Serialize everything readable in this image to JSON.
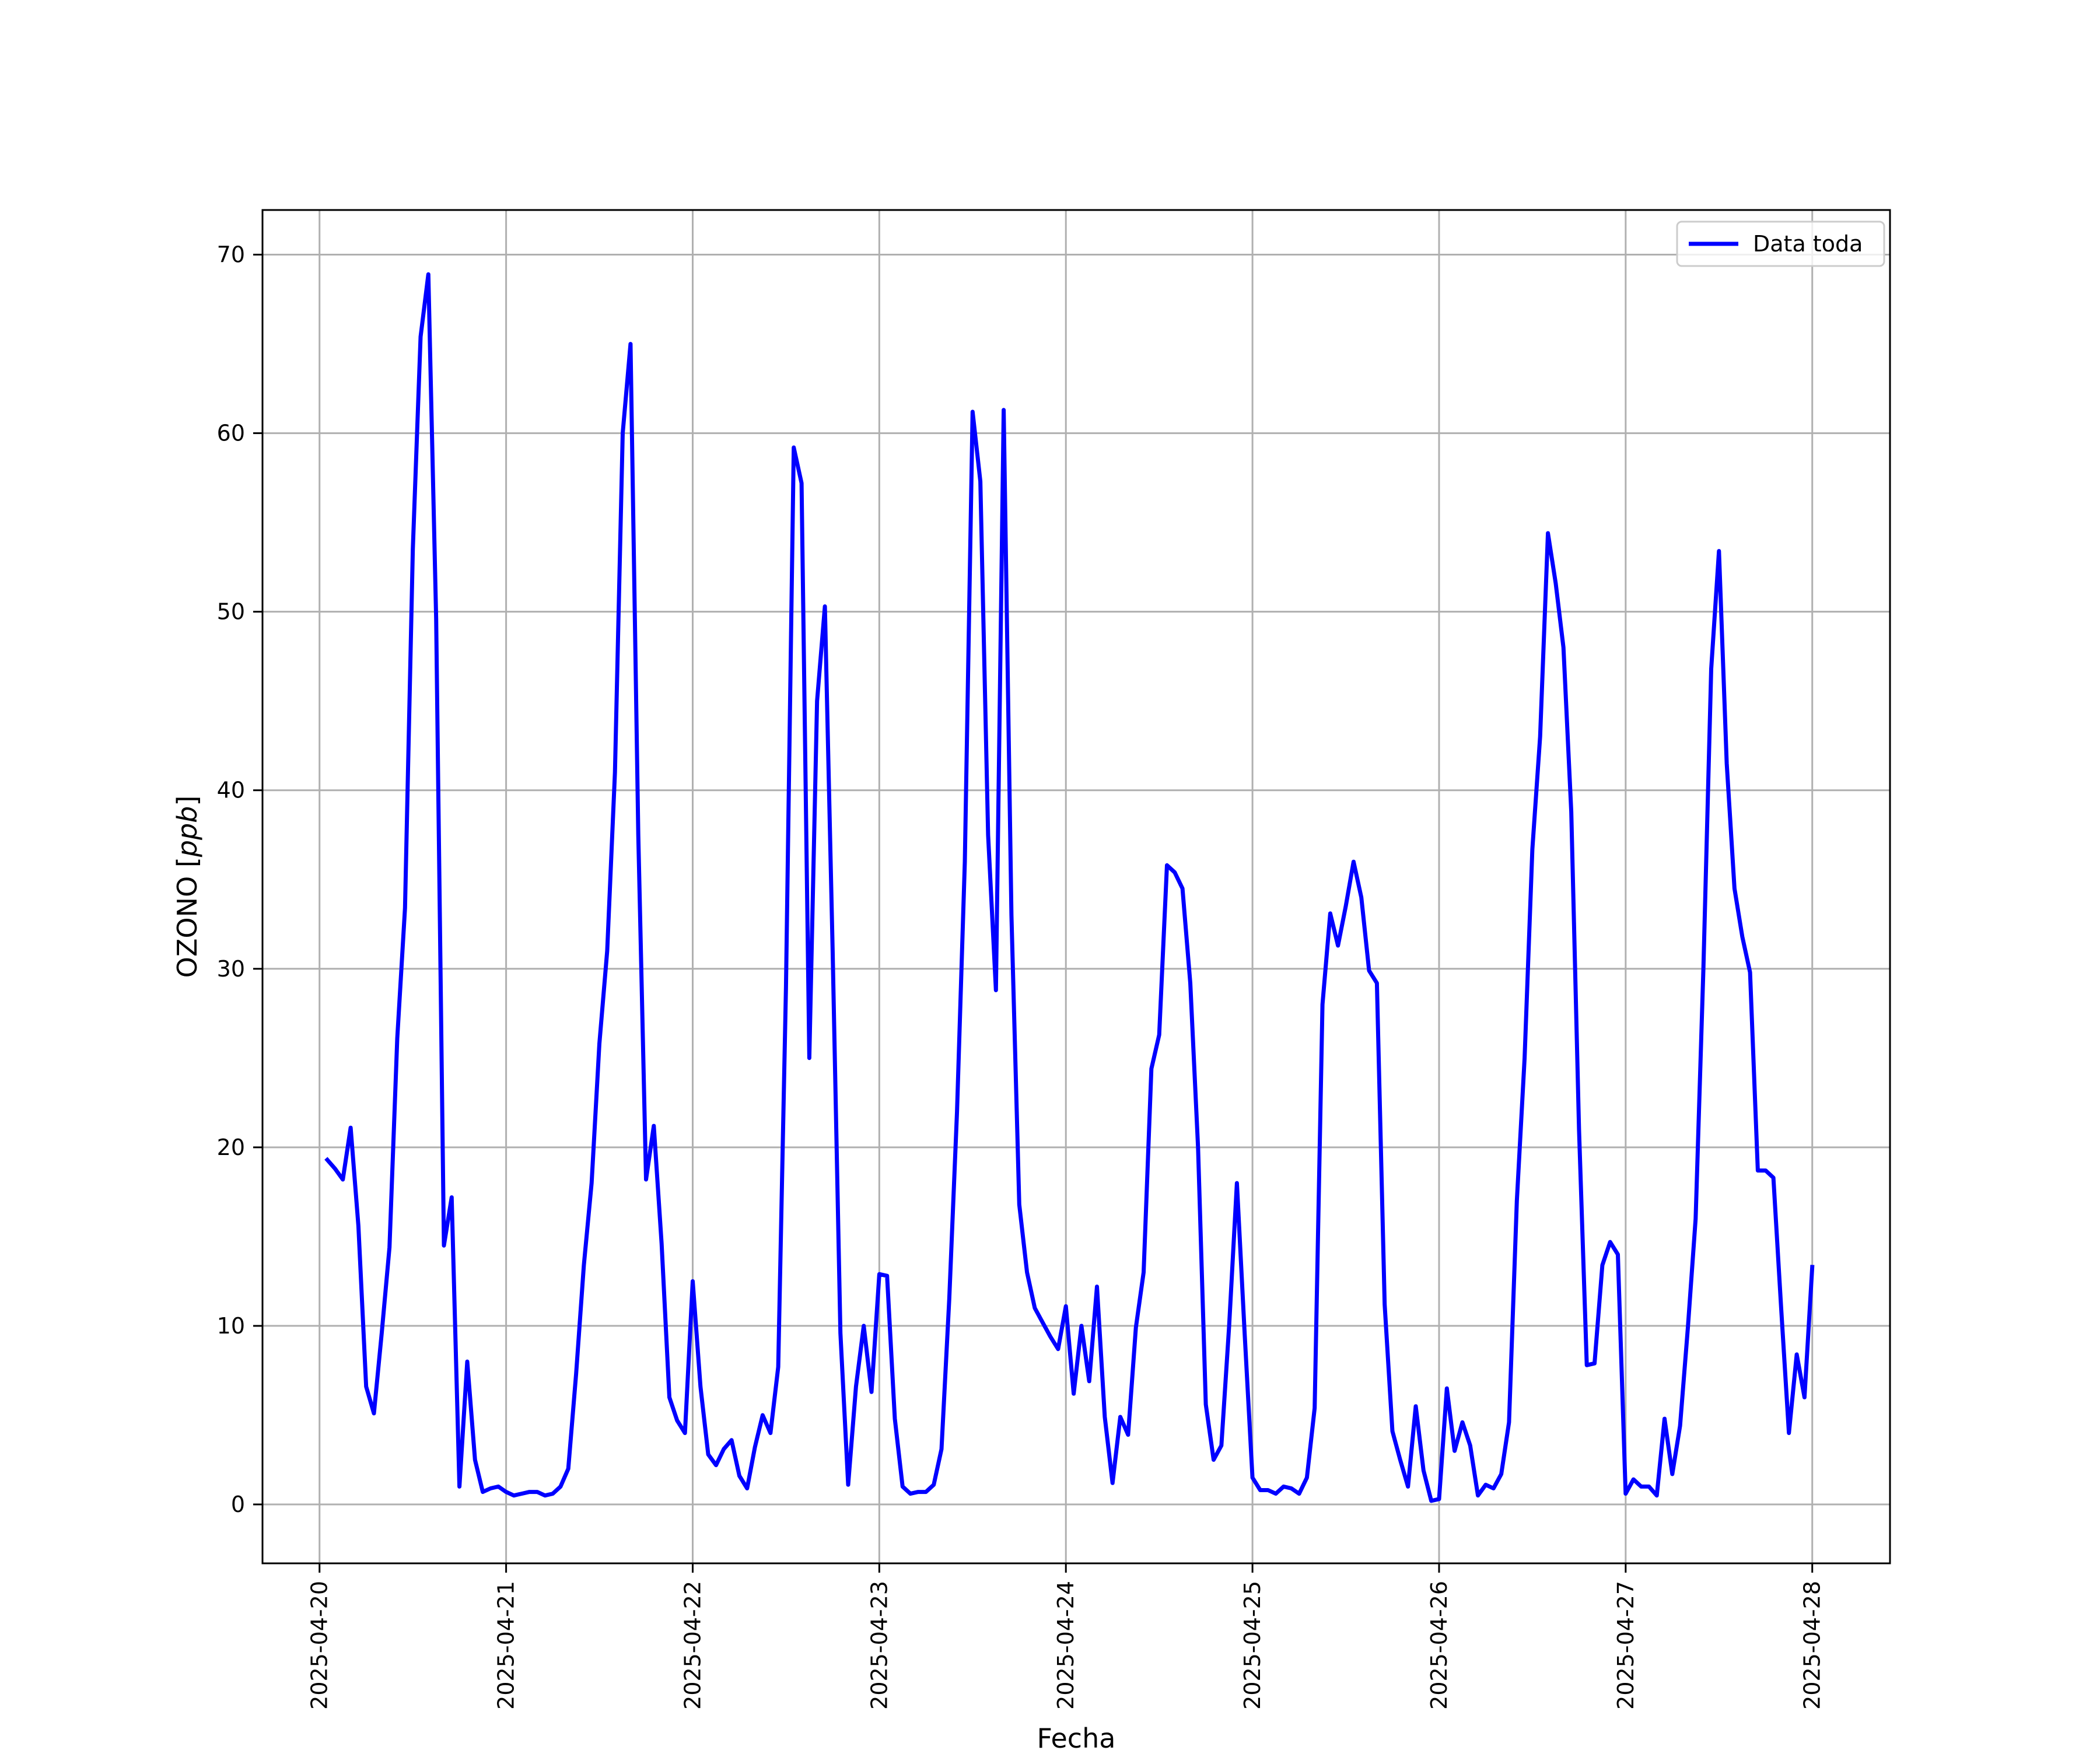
{
  "chart_data": {
    "type": "line",
    "title": "",
    "xlabel": "Fecha",
    "ylabel_main": "OZONO [",
    "ylabel_unit": "ppb",
    "ylabel_close": "]",
    "xlim": [
      "2025-04-19T16:40",
      "2025-04-28T10:00"
    ],
    "ylim": [
      -3.3,
      72.5
    ],
    "xticks": [
      "2025-04-20",
      "2025-04-21",
      "2025-04-22",
      "2025-04-23",
      "2025-04-24",
      "2025-04-25",
      "2025-04-26",
      "2025-04-27",
      "2025-04-28"
    ],
    "yticks": [
      0,
      10,
      20,
      30,
      40,
      50,
      60,
      70
    ],
    "grid": true,
    "legend_position": "top-right",
    "series": [
      {
        "name": "Data toda",
        "color": "#0000ff",
        "points": [
          [
            "2025-04-20T01:00",
            19.3
          ],
          [
            "2025-04-20T02:00",
            18.8
          ],
          [
            "2025-04-20T03:00",
            18.2
          ],
          [
            "2025-04-20T04:00",
            21.1
          ],
          [
            "2025-04-20T05:00",
            15.6
          ],
          [
            "2025-04-20T06:00",
            6.6
          ],
          [
            "2025-04-20T07:00",
            5.1
          ],
          [
            "2025-04-20T08:00",
            9.6
          ],
          [
            "2025-04-20T09:00",
            14.4
          ],
          [
            "2025-04-20T10:00",
            26.1
          ],
          [
            "2025-04-20T11:00",
            33.4
          ],
          [
            "2025-04-20T12:00",
            53.5
          ],
          [
            "2025-04-20T13:00",
            65.4
          ],
          [
            "2025-04-20T14:00",
            68.9
          ],
          [
            "2025-04-20T15:00",
            49.6
          ],
          [
            "2025-04-20T16:00",
            14.5
          ],
          [
            "2025-04-20T17:00",
            17.2
          ],
          [
            "2025-04-20T18:00",
            1.0
          ],
          [
            "2025-04-20T19:00",
            8.0
          ],
          [
            "2025-04-20T20:00",
            2.5
          ],
          [
            "2025-04-20T21:00",
            0.7
          ],
          [
            "2025-04-20T22:00",
            0.9
          ],
          [
            "2025-04-20T23:00",
            1.0
          ],
          [
            "2025-04-21T00:00",
            0.7
          ],
          [
            "2025-04-21T01:00",
            0.5
          ],
          [
            "2025-04-21T02:00",
            0.6
          ],
          [
            "2025-04-21T03:00",
            0.7
          ],
          [
            "2025-04-21T04:00",
            0.7
          ],
          [
            "2025-04-21T05:00",
            0.5
          ],
          [
            "2025-04-21T06:00",
            0.6
          ],
          [
            "2025-04-21T07:00",
            1.0
          ],
          [
            "2025-04-21T08:00",
            2.0
          ],
          [
            "2025-04-21T09:00",
            7.3
          ],
          [
            "2025-04-21T10:00",
            13.4
          ],
          [
            "2025-04-21T11:00",
            18.0
          ],
          [
            "2025-04-21T12:00",
            25.8
          ],
          [
            "2025-04-21T13:00",
            31.0
          ],
          [
            "2025-04-21T14:00",
            41.0
          ],
          [
            "2025-04-21T15:00",
            60.0
          ],
          [
            "2025-04-21T16:00",
            65.0
          ],
          [
            "2025-04-21T17:00",
            37.5
          ],
          [
            "2025-04-21T18:00",
            18.2
          ],
          [
            "2025-04-21T19:00",
            21.2
          ],
          [
            "2025-04-21T20:00",
            14.6
          ],
          [
            "2025-04-21T21:00",
            6.0
          ],
          [
            "2025-04-21T22:00",
            4.7
          ],
          [
            "2025-04-21T23:00",
            4.0
          ],
          [
            "2025-04-22T00:00",
            12.5
          ],
          [
            "2025-04-22T01:00",
            6.6
          ],
          [
            "2025-04-22T02:00",
            2.8
          ],
          [
            "2025-04-22T03:00",
            2.2
          ],
          [
            "2025-04-22T04:00",
            3.1
          ],
          [
            "2025-04-22T05:00",
            3.6
          ],
          [
            "2025-04-22T06:00",
            1.6
          ],
          [
            "2025-04-22T07:00",
            0.9
          ],
          [
            "2025-04-22T08:00",
            3.2
          ],
          [
            "2025-04-22T09:00",
            5.0
          ],
          [
            "2025-04-22T10:00",
            4.0
          ],
          [
            "2025-04-22T11:00",
            7.7
          ],
          [
            "2025-04-22T12:00",
            29.0
          ],
          [
            "2025-04-22T13:00",
            59.2
          ],
          [
            "2025-04-22T14:00",
            57.2
          ],
          [
            "2025-04-22T15:00",
            25.0
          ],
          [
            "2025-04-22T16:00",
            45.0
          ],
          [
            "2025-04-22T17:00",
            50.3
          ],
          [
            "2025-04-22T18:00",
            31.0
          ],
          [
            "2025-04-22T19:00",
            9.6
          ],
          [
            "2025-04-22T20:00",
            1.1
          ],
          [
            "2025-04-22T21:00",
            6.6
          ],
          [
            "2025-04-22T22:00",
            10.0
          ],
          [
            "2025-04-22T23:00",
            6.3
          ],
          [
            "2025-04-23T00:00",
            12.9
          ],
          [
            "2025-04-23T01:00",
            12.8
          ],
          [
            "2025-04-23T02:00",
            4.8
          ],
          [
            "2025-04-23T03:00",
            1.0
          ],
          [
            "2025-04-23T04:00",
            0.6
          ],
          [
            "2025-04-23T05:00",
            0.7
          ],
          [
            "2025-04-23T06:00",
            0.7
          ],
          [
            "2025-04-23T07:00",
            1.1
          ],
          [
            "2025-04-23T08:00",
            3.1
          ],
          [
            "2025-04-23T09:00",
            11.5
          ],
          [
            "2025-04-23T10:00",
            22.0
          ],
          [
            "2025-04-23T11:00",
            36.0
          ],
          [
            "2025-04-23T12:00",
            61.2
          ],
          [
            "2025-04-23T13:00",
            57.3
          ],
          [
            "2025-04-23T14:00",
            37.5
          ],
          [
            "2025-04-23T15:00",
            28.8
          ],
          [
            "2025-04-23T16:00",
            61.3
          ],
          [
            "2025-04-23T17:00",
            33.0
          ],
          [
            "2025-04-23T18:00",
            16.8
          ],
          [
            "2025-04-23T19:00",
            13.0
          ],
          [
            "2025-04-23T20:00",
            11.0
          ],
          [
            "2025-04-23T21:00",
            10.2
          ],
          [
            "2025-04-23T22:00",
            9.4
          ],
          [
            "2025-04-23T23:00",
            8.7
          ],
          [
            "2025-04-24T00:00",
            11.1
          ],
          [
            "2025-04-24T01:00",
            6.2
          ],
          [
            "2025-04-24T02:00",
            10.0
          ],
          [
            "2025-04-24T03:00",
            6.9
          ],
          [
            "2025-04-24T04:00",
            12.2
          ],
          [
            "2025-04-24T05:00",
            4.9
          ],
          [
            "2025-04-24T06:00",
            1.2
          ],
          [
            "2025-04-24T07:00",
            4.9
          ],
          [
            "2025-04-24T08:00",
            3.9
          ],
          [
            "2025-04-24T09:00",
            9.9
          ],
          [
            "2025-04-24T10:00",
            13.0
          ],
          [
            "2025-04-24T11:00",
            24.4
          ],
          [
            "2025-04-24T12:00",
            26.3
          ],
          [
            "2025-04-24T13:00",
            35.8
          ],
          [
            "2025-04-24T14:00",
            35.4
          ],
          [
            "2025-04-24T15:00",
            34.5
          ],
          [
            "2025-04-24T16:00",
            29.2
          ],
          [
            "2025-04-24T17:00",
            20.0
          ],
          [
            "2025-04-24T18:00",
            5.6
          ],
          [
            "2025-04-24T19:00",
            2.5
          ],
          [
            "2025-04-24T20:00",
            3.3
          ],
          [
            "2025-04-24T21:00",
            10.0
          ],
          [
            "2025-04-24T22:00",
            18.0
          ],
          [
            "2025-04-24T23:00",
            9.5
          ],
          [
            "2025-04-25T00:00",
            1.5
          ],
          [
            "2025-04-25T01:00",
            0.8
          ],
          [
            "2025-04-25T02:00",
            0.8
          ],
          [
            "2025-04-25T03:00",
            0.6
          ],
          [
            "2025-04-25T04:00",
            1.0
          ],
          [
            "2025-04-25T05:00",
            0.9
          ],
          [
            "2025-04-25T06:00",
            0.6
          ],
          [
            "2025-04-25T07:00",
            1.5
          ],
          [
            "2025-04-25T08:00",
            5.4
          ],
          [
            "2025-04-25T09:00",
            28.0
          ],
          [
            "2025-04-25T10:00",
            33.1
          ],
          [
            "2025-04-25T11:00",
            31.3
          ],
          [
            "2025-04-25T12:00",
            33.5
          ],
          [
            "2025-04-25T13:00",
            36.0
          ],
          [
            "2025-04-25T14:00",
            34.0
          ],
          [
            "2025-04-25T15:00",
            29.9
          ],
          [
            "2025-04-25T16:00",
            29.2
          ],
          [
            "2025-04-25T17:00",
            11.2
          ],
          [
            "2025-04-25T18:00",
            4.1
          ],
          [
            "2025-04-25T19:00",
            2.5
          ],
          [
            "2025-04-25T20:00",
            1.0
          ],
          [
            "2025-04-25T21:00",
            5.5
          ],
          [
            "2025-04-25T22:00",
            1.9
          ],
          [
            "2025-04-25T23:00",
            0.2
          ],
          [
            "2025-04-26T00:00",
            0.3
          ],
          [
            "2025-04-26T01:00",
            6.5
          ],
          [
            "2025-04-26T02:00",
            3.0
          ],
          [
            "2025-04-26T03:00",
            4.6
          ],
          [
            "2025-04-26T04:00",
            3.3
          ],
          [
            "2025-04-26T05:00",
            0.5
          ],
          [
            "2025-04-26T06:00",
            1.1
          ],
          [
            "2025-04-26T07:00",
            0.9
          ],
          [
            "2025-04-26T08:00",
            1.7
          ],
          [
            "2025-04-26T09:00",
            4.6
          ],
          [
            "2025-04-26T10:00",
            17.0
          ],
          [
            "2025-04-26T11:00",
            25.0
          ],
          [
            "2025-04-26T12:00",
            36.7
          ],
          [
            "2025-04-26T13:00",
            43.0
          ],
          [
            "2025-04-26T14:00",
            54.4
          ],
          [
            "2025-04-26T15:00",
            51.6
          ],
          [
            "2025-04-26T16:00",
            48.0
          ],
          [
            "2025-04-26T17:00",
            38.8
          ],
          [
            "2025-04-26T18:00",
            21.0
          ],
          [
            "2025-04-26T19:00",
            7.8
          ],
          [
            "2025-04-26T20:00",
            7.9
          ],
          [
            "2025-04-26T21:00",
            13.4
          ],
          [
            "2025-04-26T22:00",
            14.7
          ],
          [
            "2025-04-26T23:00",
            14.0
          ],
          [
            "2025-04-27T00:00",
            0.6
          ],
          [
            "2025-04-27T01:00",
            1.4
          ],
          [
            "2025-04-27T02:00",
            1.0
          ],
          [
            "2025-04-27T03:00",
            1.0
          ],
          [
            "2025-04-27T04:00",
            0.5
          ],
          [
            "2025-04-27T05:00",
            4.8
          ],
          [
            "2025-04-27T06:00",
            1.7
          ],
          [
            "2025-04-27T07:00",
            4.4
          ],
          [
            "2025-04-27T08:00",
            9.9
          ],
          [
            "2025-04-27T09:00",
            16.0
          ],
          [
            "2025-04-27T10:00",
            30.0
          ],
          [
            "2025-04-27T11:00",
            46.8
          ],
          [
            "2025-04-27T12:00",
            53.4
          ],
          [
            "2025-04-27T13:00",
            41.5
          ],
          [
            "2025-04-27T14:00",
            34.5
          ],
          [
            "2025-04-27T15:00",
            31.8
          ],
          [
            "2025-04-27T16:00",
            29.8
          ],
          [
            "2025-04-27T17:00",
            18.7
          ],
          [
            "2025-04-27T18:00",
            18.7
          ],
          [
            "2025-04-27T19:00",
            18.3
          ],
          [
            "2025-04-27T20:00",
            11.0
          ],
          [
            "2025-04-27T21:00",
            4.0
          ],
          [
            "2025-04-27T22:00",
            8.4
          ],
          [
            "2025-04-27T23:00",
            6.0
          ],
          [
            "2025-04-28T00:00",
            13.3
          ]
        ]
      }
    ]
  }
}
